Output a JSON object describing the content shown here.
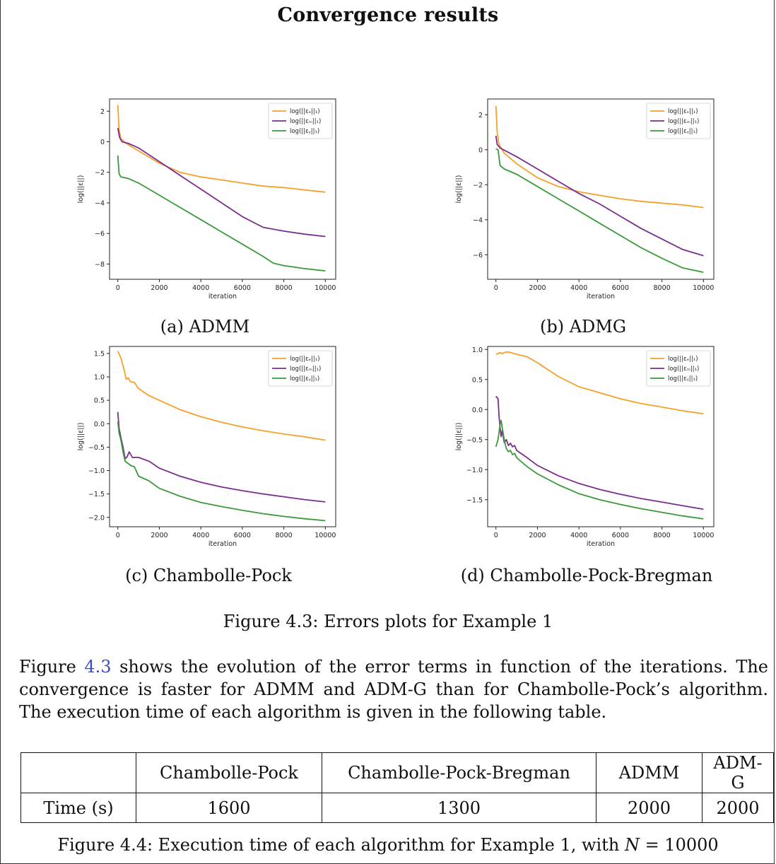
{
  "page": {
    "title": "Convergence results",
    "figure_caption": "Figure 4.3: Errors plots for Example 1",
    "paragraph": {
      "part1": "Figure ",
      "ref": "4.3",
      "part2": " shows the evolution of the error terms in function of the iterations. The convergence is faster for ADMM and ADM-G than for Chambolle-Pock’s algorithm. The execution time of each algorithm is given in the following table."
    },
    "table": {
      "headers": [
        "",
        "Chambolle-Pock",
        "Chambolle-Pock-Bregman",
        "ADMM",
        "ADM-G"
      ],
      "row_label": "Time (s)",
      "values": [
        "1600",
        "1300",
        "2000",
        "2000"
      ]
    },
    "table_caption_pre": "Figure 4.4: Execution time of each algorithm for Example 1, with ",
    "table_caption_var": "N",
    "table_caption_post": " = 10000"
  },
  "colors": {
    "orange": "#f5a02a",
    "purple": "#7b2d8e",
    "green": "#3a9a3a"
  },
  "legend_labels": [
    "log(||εₑ||₁)",
    "log(||εₘ||₁)",
    "log(||εᵧ||₁)"
  ],
  "chart_data": [
    {
      "type": "line",
      "caption": "(a) ADMM",
      "xlabel": "iteration",
      "ylabel": "log(||ε||)",
      "xlim": [
        -400,
        10500
      ],
      "ylim": [
        -9,
        2.8
      ],
      "xticks": [
        0,
        2000,
        4000,
        6000,
        8000,
        10000
      ],
      "yticks": [
        2,
        0,
        -2,
        -4,
        -6,
        -8
      ],
      "legend": "top-right",
      "series": [
        {
          "name": "log(||εₑ||₁)",
          "color": "orange",
          "points": [
            [
              0,
              2.4
            ],
            [
              60,
              0.8
            ],
            [
              150,
              0.2
            ],
            [
              400,
              -0.1
            ],
            [
              1000,
              -0.6
            ],
            [
              2000,
              -1.4
            ],
            [
              3000,
              -2.0
            ],
            [
              4000,
              -2.3
            ],
            [
              5000,
              -2.5
            ],
            [
              6000,
              -2.7
            ],
            [
              7000,
              -2.9
            ],
            [
              8000,
              -3.0
            ],
            [
              9000,
              -3.15
            ],
            [
              10000,
              -3.3
            ]
          ]
        },
        {
          "name": "log(||εₘ||₁)",
          "color": "purple",
          "points": [
            [
              0,
              0.9
            ],
            [
              80,
              0.3
            ],
            [
              200,
              0.0
            ],
            [
              500,
              -0.1
            ],
            [
              1000,
              -0.4
            ],
            [
              2000,
              -1.3
            ],
            [
              3000,
              -2.2
            ],
            [
              4000,
              -3.1
            ],
            [
              5000,
              -4.0
            ],
            [
              6000,
              -4.9
            ],
            [
              7000,
              -5.6
            ],
            [
              8000,
              -5.85
            ],
            [
              9000,
              -6.05
            ],
            [
              10000,
              -6.2
            ]
          ]
        },
        {
          "name": "log(||εᵧ||₁)",
          "color": "green",
          "points": [
            [
              0,
              -0.9
            ],
            [
              60,
              -2.1
            ],
            [
              150,
              -2.3
            ],
            [
              500,
              -2.4
            ],
            [
              1000,
              -2.7
            ],
            [
              2000,
              -3.5
            ],
            [
              3000,
              -4.3
            ],
            [
              4000,
              -5.1
            ],
            [
              5000,
              -5.9
            ],
            [
              6000,
              -6.7
            ],
            [
              7000,
              -7.5
            ],
            [
              7500,
              -7.95
            ],
            [
              8000,
              -8.1
            ],
            [
              9000,
              -8.3
            ],
            [
              10000,
              -8.45
            ]
          ]
        }
      ]
    },
    {
      "type": "line",
      "caption": "(b) ADMG",
      "xlabel": "iteration",
      "ylabel": "log(||ε||)",
      "xlim": [
        -400,
        10500
      ],
      "ylim": [
        -7.4,
        2.9
      ],
      "xticks": [
        0,
        2000,
        4000,
        6000,
        8000,
        10000
      ],
      "yticks": [
        2,
        0,
        -2,
        -4,
        -6
      ],
      "legend": "top-right",
      "series": [
        {
          "name": "log(||εₑ||₁)",
          "color": "orange",
          "points": [
            [
              0,
              2.5
            ],
            [
              60,
              1.0
            ],
            [
              150,
              0.3
            ],
            [
              400,
              -0.2
            ],
            [
              1000,
              -0.8
            ],
            [
              2000,
              -1.6
            ],
            [
              3000,
              -2.1
            ],
            [
              4000,
              -2.4
            ],
            [
              5000,
              -2.6
            ],
            [
              6000,
              -2.8
            ],
            [
              7000,
              -2.95
            ],
            [
              8000,
              -3.05
            ],
            [
              9000,
              -3.15
            ],
            [
              10000,
              -3.3
            ]
          ]
        },
        {
          "name": "log(||εₘ||₁)",
          "color": "purple",
          "points": [
            [
              0,
              0.8
            ],
            [
              60,
              0.3
            ],
            [
              200,
              0.1
            ],
            [
              1000,
              -0.4
            ],
            [
              2000,
              -1.1
            ],
            [
              3000,
              -1.8
            ],
            [
              4000,
              -2.5
            ],
            [
              5000,
              -3.1
            ],
            [
              6000,
              -3.8
            ],
            [
              7000,
              -4.5
            ],
            [
              8000,
              -5.1
            ],
            [
              9000,
              -5.7
            ],
            [
              10000,
              -6.05
            ]
          ]
        },
        {
          "name": "log(||εᵧ||₁)",
          "color": "green",
          "points": [
            [
              0,
              0.05
            ],
            [
              100,
              0.0
            ],
            [
              200,
              -0.9
            ],
            [
              400,
              -1.1
            ],
            [
              1000,
              -1.4
            ],
            [
              2000,
              -2.1
            ],
            [
              3000,
              -2.8
            ],
            [
              4000,
              -3.5
            ],
            [
              5000,
              -4.2
            ],
            [
              6000,
              -4.9
            ],
            [
              7000,
              -5.6
            ],
            [
              8000,
              -6.2
            ],
            [
              9000,
              -6.75
            ],
            [
              10000,
              -7.0
            ]
          ]
        }
      ]
    },
    {
      "type": "line",
      "caption": "(c) Chambolle-Pock",
      "xlabel": "iteration",
      "ylabel": "log(||ε||)",
      "xlim": [
        -400,
        10500
      ],
      "ylim": [
        -2.2,
        1.65
      ],
      "xticks": [
        0,
        2000,
        4000,
        6000,
        8000,
        10000
      ],
      "yticks": [
        1.5,
        1.0,
        0.5,
        0.0,
        -0.5,
        -1.0,
        -1.5,
        -2.0
      ],
      "legend": "top-right",
      "series": [
        {
          "name": "log(||εₑ||₁)",
          "color": "orange",
          "points": [
            [
              0,
              1.55
            ],
            [
              150,
              1.4
            ],
            [
              300,
              1.15
            ],
            [
              400,
              0.95
            ],
            [
              500,
              0.98
            ],
            [
              600,
              0.9
            ],
            [
              800,
              0.88
            ],
            [
              1000,
              0.75
            ],
            [
              1500,
              0.6
            ],
            [
              2000,
              0.5
            ],
            [
              3000,
              0.3
            ],
            [
              4000,
              0.15
            ],
            [
              5000,
              0.03
            ],
            [
              6000,
              -0.07
            ],
            [
              7000,
              -0.15
            ],
            [
              8000,
              -0.22
            ],
            [
              9000,
              -0.28
            ],
            [
              10000,
              -0.35
            ]
          ]
        },
        {
          "name": "log(||εₘ||₁)",
          "color": "purple",
          "points": [
            [
              0,
              0.25
            ],
            [
              60,
              -0.1
            ],
            [
              150,
              -0.3
            ],
            [
              250,
              -0.5
            ],
            [
              350,
              -0.75
            ],
            [
              450,
              -0.7
            ],
            [
              550,
              -0.6
            ],
            [
              700,
              -0.72
            ],
            [
              1000,
              -0.72
            ],
            [
              1500,
              -0.8
            ],
            [
              2000,
              -0.95
            ],
            [
              3000,
              -1.12
            ],
            [
              4000,
              -1.25
            ],
            [
              5000,
              -1.35
            ],
            [
              6000,
              -1.43
            ],
            [
              7000,
              -1.5
            ],
            [
              8000,
              -1.56
            ],
            [
              9000,
              -1.62
            ],
            [
              10000,
              -1.67
            ]
          ]
        },
        {
          "name": "log(||εᵧ||₁)",
          "color": "green",
          "points": [
            [
              0,
              0.05
            ],
            [
              60,
              -0.2
            ],
            [
              150,
              -0.35
            ],
            [
              250,
              -0.6
            ],
            [
              350,
              -0.8
            ],
            [
              500,
              -0.85
            ],
            [
              650,
              -0.9
            ],
            [
              800,
              -0.92
            ],
            [
              1000,
              -1.12
            ],
            [
              1500,
              -1.22
            ],
            [
              2000,
              -1.38
            ],
            [
              3000,
              -1.55
            ],
            [
              4000,
              -1.68
            ],
            [
              5000,
              -1.77
            ],
            [
              6000,
              -1.85
            ],
            [
              7000,
              -1.92
            ],
            [
              8000,
              -1.98
            ],
            [
              9000,
              -2.03
            ],
            [
              10000,
              -2.07
            ]
          ]
        }
      ]
    },
    {
      "type": "line",
      "caption": "(d) Chambolle-Pock-Bregman",
      "xlabel": "iteration",
      "ylabel": "log(||ε||)",
      "xlim": [
        -400,
        10500
      ],
      "ylim": [
        -1.95,
        1.05
      ],
      "xticks": [
        0,
        2000,
        4000,
        6000,
        8000,
        10000
      ],
      "yticks": [
        1.0,
        0.5,
        0.0,
        -0.5,
        -1.0,
        -1.5
      ],
      "legend": "top-right",
      "series": [
        {
          "name": "log(||εₑ||₁)",
          "color": "orange",
          "points": [
            [
              0,
              0.92
            ],
            [
              100,
              0.93
            ],
            [
              200,
              0.95
            ],
            [
              300,
              0.93
            ],
            [
              500,
              0.96
            ],
            [
              700,
              0.95
            ],
            [
              1000,
              0.92
            ],
            [
              1500,
              0.88
            ],
            [
              2000,
              0.78
            ],
            [
              3000,
              0.55
            ],
            [
              4000,
              0.38
            ],
            [
              5000,
              0.28
            ],
            [
              6000,
              0.18
            ],
            [
              7000,
              0.1
            ],
            [
              8000,
              0.04
            ],
            [
              9000,
              -0.02
            ],
            [
              10000,
              -0.07
            ]
          ]
        },
        {
          "name": "log(||εₘ||₁)",
          "color": "purple",
          "points": [
            [
              0,
              0.22
            ],
            [
              100,
              0.18
            ],
            [
              150,
              -0.1
            ],
            [
              200,
              -0.3
            ],
            [
              250,
              -0.45
            ],
            [
              300,
              -0.35
            ],
            [
              400,
              -0.55
            ],
            [
              500,
              -0.5
            ],
            [
              600,
              -0.6
            ],
            [
              700,
              -0.56
            ],
            [
              800,
              -0.62
            ],
            [
              900,
              -0.6
            ],
            [
              1000,
              -0.68
            ],
            [
              1500,
              -0.8
            ],
            [
              2000,
              -0.93
            ],
            [
              3000,
              -1.1
            ],
            [
              4000,
              -1.23
            ],
            [
              5000,
              -1.33
            ],
            [
              6000,
              -1.41
            ],
            [
              7000,
              -1.48
            ],
            [
              8000,
              -1.54
            ],
            [
              9000,
              -1.6
            ],
            [
              10000,
              -1.66
            ]
          ]
        },
        {
          "name": "log(||εᵧ||₁)",
          "color": "green",
          "points": [
            [
              0,
              -0.62
            ],
            [
              100,
              -0.5
            ],
            [
              200,
              -0.25
            ],
            [
              250,
              -0.18
            ],
            [
              300,
              -0.3
            ],
            [
              400,
              -0.5
            ],
            [
              500,
              -0.65
            ],
            [
              600,
              -0.7
            ],
            [
              700,
              -0.68
            ],
            [
              800,
              -0.75
            ],
            [
              900,
              -0.73
            ],
            [
              1000,
              -0.8
            ],
            [
              1500,
              -0.95
            ],
            [
              2000,
              -1.07
            ],
            [
              3000,
              -1.25
            ],
            [
              4000,
              -1.4
            ],
            [
              5000,
              -1.5
            ],
            [
              6000,
              -1.58
            ],
            [
              7000,
              -1.65
            ],
            [
              8000,
              -1.71
            ],
            [
              9000,
              -1.77
            ],
            [
              10000,
              -1.82
            ]
          ]
        }
      ]
    }
  ]
}
